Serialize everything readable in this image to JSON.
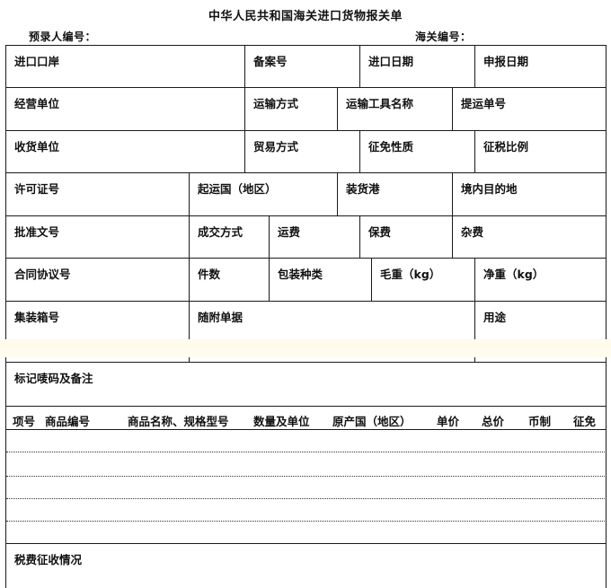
{
  "title": "中华人民共和国海关进口货物报关单",
  "pre_entry_no_label": "预录人编号：",
  "customs_no_label": "海关编号：",
  "fields": {
    "import_port": "进口口岸",
    "record_no": "备案号",
    "import_date": "进口日期",
    "declare_date": "申报日期",
    "operating_unit": "经营单位",
    "transport_mode": "运输方式",
    "vehicle_name": "运输工具名称",
    "bill_no": "提运单号",
    "consignee": "收货单位",
    "trade_mode": "贸易方式",
    "levy_nature": "征免性质",
    "tax_ratio": "征税比例",
    "license_no": "许可证号",
    "origin_country": "起运国（地区）",
    "loading_port": "装货港",
    "destination": "境内目的地",
    "approval_no": "批准文号",
    "transaction_mode": "成交方式",
    "freight": "运费",
    "insurance": "保费",
    "misc_fee": "杂费",
    "contract_no": "合同协议号",
    "pieces": "件数",
    "package_type": "包装种类",
    "gross_weight": "毛重（kg）",
    "net_weight": "净重（kg）",
    "container_no": "集装箱号",
    "attached_docs": "随附单据",
    "purpose": "用途",
    "marks_remarks": "标记唛码及备注",
    "tax_collection": "税费征收情况"
  },
  "goods_table": {
    "headers": [
      "项号",
      "商品编号",
      "商品名称、规格型号",
      "数量及单位",
      "原产国（地区）",
      "单价",
      "总价",
      "币制",
      "征免"
    ]
  }
}
